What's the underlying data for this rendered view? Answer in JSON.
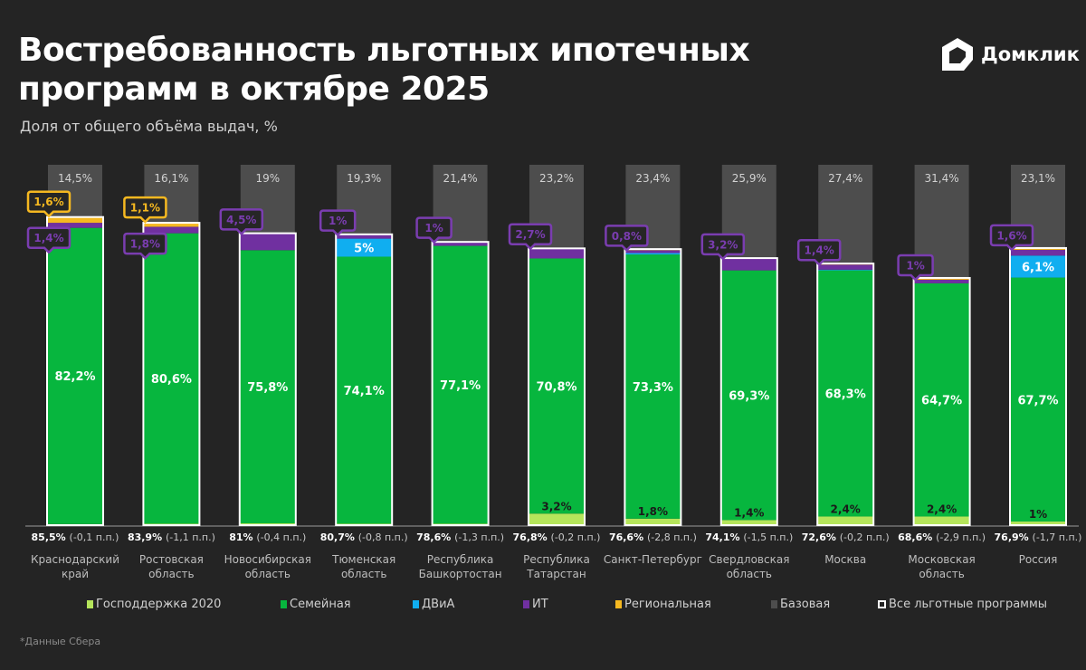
{
  "header": {
    "title_line1": "Востребованность льготных ипотечных",
    "title_line2": "программ в октябре 2025",
    "subtitle": "Доля от общего объёма выдач, %",
    "logo_text": "Домклик"
  },
  "footnote": "*Данные Сбера",
  "colors": {
    "gos2020": "#b5e55b",
    "family": "#07b63e",
    "dvia": "#10aef0",
    "it": "#7030a0",
    "regional": "#f5b820",
    "base": "#4d4d4d",
    "outline": "#ffffff"
  },
  "chart_data": {
    "type": "bar",
    "stacked": true,
    "ylim": [
      0,
      100
    ],
    "grid": false,
    "legend_position": "bottom",
    "series_keys": [
      "gos2020",
      "family",
      "dvia",
      "it",
      "regional"
    ],
    "legend": [
      {
        "key": "gos2020",
        "label": "Господдержка 2020"
      },
      {
        "key": "family",
        "label": "Семейная"
      },
      {
        "key": "dvia",
        "label": "ДВиА"
      },
      {
        "key": "it",
        "label": "ИТ"
      },
      {
        "key": "regional",
        "label": "Региональная"
      },
      {
        "key": "base",
        "label": "Базовая"
      },
      {
        "key": "outline",
        "label": "Все льготные программы"
      }
    ],
    "categories": [
      {
        "name": "Краснодарский край",
        "name_l1": "Краснодарский",
        "name_l2": "край",
        "total": "85,5%",
        "delta": "(-0,1 п.п.)",
        "base": 14.5,
        "base_label": "14,5%",
        "values": {
          "gos2020": 0.3,
          "family": 82.2,
          "dvia": 0,
          "it": 1.4,
          "regional": 1.6
        },
        "labels": {
          "gos2020": null,
          "family": "82,2%",
          "dvia": null,
          "it": "1,4%",
          "regional": "1,6%"
        }
      },
      {
        "name": "Ростовская область",
        "name_l1": "Ростовская",
        "name_l2": "область",
        "total": "83,9%",
        "delta": "(-1,1 п.п.)",
        "base": 16.1,
        "base_label": "16,1%",
        "values": {
          "gos2020": 0.4,
          "family": 80.6,
          "dvia": 0,
          "it": 1.8,
          "regional": 1.1
        },
        "labels": {
          "gos2020": null,
          "family": "80,6%",
          "dvia": null,
          "it": "1,8%",
          "regional": "1,1%"
        }
      },
      {
        "name": "Новосибирская область",
        "name_l1": "Новосибирская",
        "name_l2": "область",
        "total": "81%",
        "delta": "(-0,4 п.п.)",
        "base": 19,
        "base_label": "19%",
        "values": {
          "gos2020": 0.5,
          "family": 75.8,
          "dvia": 0,
          "it": 4.5,
          "regional": 0.2
        },
        "labels": {
          "gos2020": null,
          "family": "75,8%",
          "dvia": null,
          "it": "4,5%",
          "regional": null
        }
      },
      {
        "name": "Тюменская область",
        "name_l1": "Тюменская",
        "name_l2": "область",
        "total": "80,7%",
        "delta": "(-0,8 п.п.)",
        "base": 19.3,
        "base_label": "19,3%",
        "values": {
          "gos2020": 0.4,
          "family": 74.1,
          "dvia": 5,
          "it": 1,
          "regional": 0.2
        },
        "labels": {
          "gos2020": null,
          "family": "74,1%",
          "dvia": "5%",
          "it": "1%",
          "regional": null
        }
      },
      {
        "name": "Республика Башкортостан",
        "name_l1": "Республика",
        "name_l2": "Башкортостан",
        "total": "78,6%",
        "delta": "(-1,3 п.п.)",
        "base": 21.4,
        "base_label": "21,4%",
        "values": {
          "gos2020": 0.4,
          "family": 77.1,
          "dvia": 0,
          "it": 1,
          "regional": 0.1
        },
        "labels": {
          "gos2020": null,
          "family": "77,1%",
          "dvia": null,
          "it": "1%",
          "regional": null
        }
      },
      {
        "name": "Республика Татарстан",
        "name_l1": "Республика",
        "name_l2": "Татарстан",
        "total": "76,8%",
        "delta": "(-0,2 п.п.)",
        "base": 23.2,
        "base_label": "23,2%",
        "values": {
          "gos2020": 3.2,
          "family": 70.8,
          "dvia": 0,
          "it": 2.7,
          "regional": 0.1
        },
        "labels": {
          "gos2020": "3,2%",
          "family": "70,8%",
          "dvia": null,
          "it": "2,7%",
          "regional": null
        }
      },
      {
        "name": "Санкт-Петербург",
        "name_l1": "Санкт-Петербург",
        "name_l2": "",
        "total": "76,6%",
        "delta": "(-2,8 п.п.)",
        "base": 23.4,
        "base_label": "23,4%",
        "values": {
          "gos2020": 1.8,
          "family": 73.3,
          "dvia": 0.4,
          "it": 0.8,
          "regional": 0.3
        },
        "labels": {
          "gos2020": "1,8%",
          "family": "73,3%",
          "dvia": null,
          "it": "0,8%",
          "regional": null
        }
      },
      {
        "name": "Свердловская область",
        "name_l1": "Свердловская",
        "name_l2": "область",
        "total": "74,1%",
        "delta": "(-1,5 п.п.)",
        "base": 25.9,
        "base_label": "25,9%",
        "values": {
          "gos2020": 1.4,
          "family": 69.3,
          "dvia": 0,
          "it": 3.2,
          "regional": 0.2
        },
        "labels": {
          "gos2020": "1,4%",
          "family": "69,3%",
          "dvia": null,
          "it": "3,2%",
          "regional": null
        }
      },
      {
        "name": "Москва",
        "name_l1": "Москва",
        "name_l2": "",
        "total": "72,6%",
        "delta": "(-0,2 п.п.)",
        "base": 27.4,
        "base_label": "27,4%",
        "values": {
          "gos2020": 2.4,
          "family": 68.3,
          "dvia": 0.2,
          "it": 1.4,
          "regional": 0.3
        },
        "labels": {
          "gos2020": "2,4%",
          "family": "68,3%",
          "dvia": null,
          "it": "1,4%",
          "regional": null
        }
      },
      {
        "name": "Московская область",
        "name_l1": "Московская",
        "name_l2": "область",
        "total": "68,6%",
        "delta": "(-2,9 п.п.)",
        "base": 31.4,
        "base_label": "31,4%",
        "values": {
          "gos2020": 2.4,
          "family": 64.7,
          "dvia": 0,
          "it": 1,
          "regional": 0.5
        },
        "labels": {
          "gos2020": "2,4%",
          "family": "64,7%",
          "dvia": null,
          "it": "1%",
          "regional": null
        }
      },
      {
        "name": "Россия",
        "name_l1": "Россия",
        "name_l2": "",
        "total": "76,9%",
        "delta": "(-1,7 п.п.)",
        "base": 23.1,
        "base_label": "23,1%",
        "values": {
          "gos2020": 1,
          "family": 67.7,
          "dvia": 6.1,
          "it": 1.6,
          "regional": 0.5
        },
        "labels": {
          "gos2020": "1%",
          "family": "67,7%",
          "dvia": "6,1%",
          "it": "1,6%",
          "regional": null
        }
      }
    ]
  }
}
